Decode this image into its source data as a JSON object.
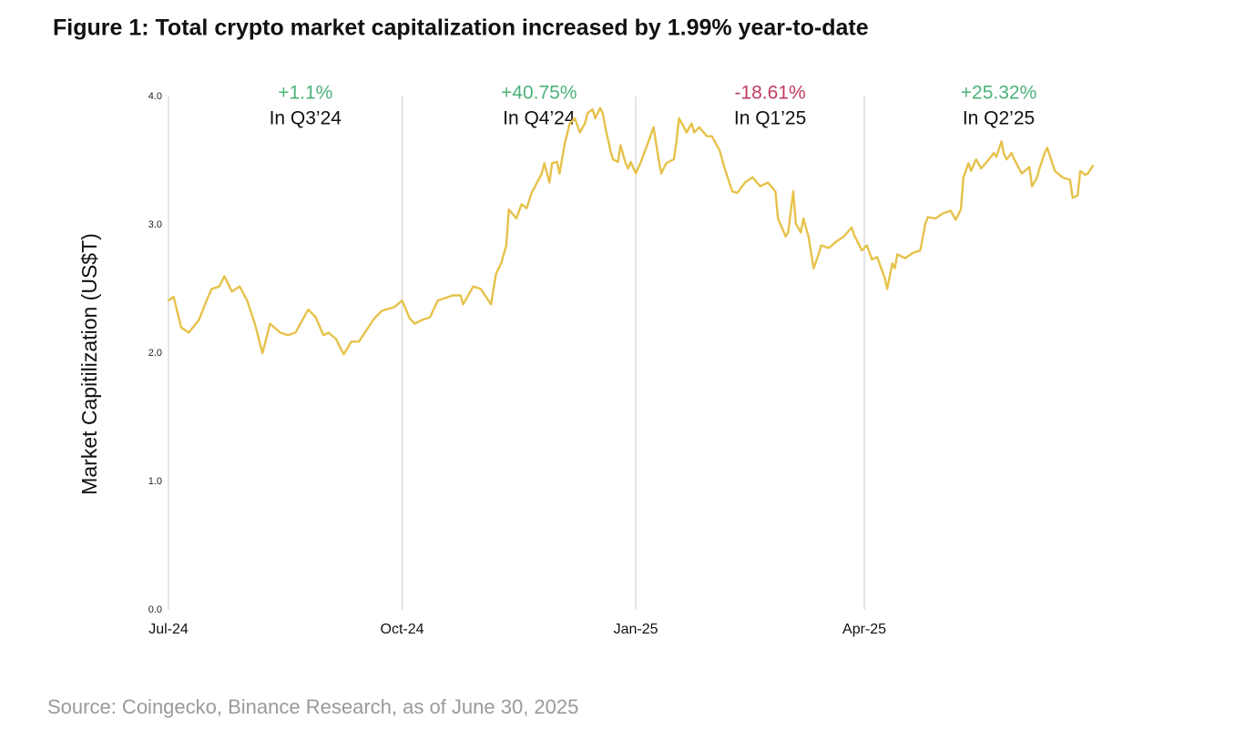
{
  "chart_data": {
    "type": "line",
    "title": "Figure 1: Total crypto market capitalization increased by 1.99% year-to-date",
    "y_label": "Market Capitilization (US$T)",
    "source": "Source: Coingecko, Binance Research, as of June 30, 2025",
    "color": "#e6c24a",
    "grid_color": "#cccccc",
    "xlim": [
      0,
      364
    ],
    "xticks": [
      {
        "value": 0,
        "label": "Jul-24"
      },
      {
        "value": 92,
        "label": "Oct-24"
      },
      {
        "value": 184,
        "label": "Jan-25"
      },
      {
        "value": 274,
        "label": "Apr-25"
      }
    ],
    "ylim": [
      0,
      4
    ],
    "yticks": [
      {
        "value": 0,
        "label": "0.0"
      },
      {
        "value": 1,
        "label": "1.0"
      },
      {
        "value": 2,
        "label": "2.0"
      },
      {
        "value": 3,
        "label": "3.0"
      },
      {
        "value": 4,
        "label": "4.0"
      }
    ],
    "annotations": [
      {
        "change": "+1.1%",
        "period": "In Q3’24",
        "color": "#4cb27a"
      },
      {
        "change": "+40.75%",
        "period": "In Q4’24",
        "color": "#4cb27a"
      },
      {
        "change": "-18.61%",
        "period": "In Q1’25",
        "color": "#c23b5e"
      },
      {
        "change": "+25.32%",
        "period": "In Q2’25",
        "color": "#4cb27a"
      }
    ],
    "x": [
      0,
      2,
      5,
      8,
      12,
      15,
      17,
      20,
      22,
      25,
      28,
      31,
      34,
      37,
      40,
      44,
      47,
      50,
      55,
      58,
      61,
      63,
      66,
      69,
      72,
      75,
      78,
      81,
      84,
      89,
      92,
      95,
      97,
      100,
      103,
      106,
      109,
      112,
      115,
      116,
      120,
      123,
      127,
      129,
      131,
      133,
      134,
      137,
      139,
      141,
      143,
      147,
      148,
      150,
      151,
      153,
      154,
      156,
      158,
      160,
      162,
      164,
      165,
      167,
      168,
      170,
      171,
      172,
      174,
      175,
      177,
      178,
      180,
      181,
      182,
      184,
      186,
      189,
      191,
      193,
      194,
      196,
      199,
      200,
      201,
      203,
      204,
      206,
      207,
      209,
      212,
      214,
      217,
      219,
      222,
      224,
      227,
      230,
      233,
      236,
      239,
      240,
      243,
      244,
      246,
      247,
      249,
      250,
      252,
      254,
      256,
      257,
      260,
      263,
      266,
      269,
      270,
      273,
      275,
      277,
      279,
      282,
      283,
      285,
      286,
      287,
      290,
      293,
      296,
      298,
      299,
      302,
      305,
      308,
      310,
      312,
      313,
      315,
      316,
      318,
      320,
      323,
      325,
      326,
      328,
      329,
      330,
      332,
      333,
      336,
      339,
      340,
      342,
      343,
      345,
      346,
      348,
      349,
      352,
      355,
      356,
      358,
      359,
      361,
      362,
      364
    ],
    "values": [
      2.41,
      2.44,
      2.2,
      2.16,
      2.26,
      2.41,
      2.5,
      2.52,
      2.6,
      2.48,
      2.52,
      2.41,
      2.23,
      2.0,
      2.23,
      2.16,
      2.14,
      2.16,
      2.34,
      2.28,
      2.14,
      2.16,
      2.11,
      1.99,
      2.09,
      2.09,
      2.18,
      2.27,
      2.33,
      2.36,
      2.41,
      2.27,
      2.23,
      2.26,
      2.28,
      2.41,
      2.43,
      2.45,
      2.45,
      2.38,
      2.52,
      2.5,
      2.38,
      2.62,
      2.7,
      2.84,
      3.12,
      3.05,
      3.16,
      3.13,
      3.25,
      3.4,
      3.48,
      3.33,
      3.48,
      3.49,
      3.4,
      3.63,
      3.79,
      3.83,
      3.72,
      3.79,
      3.87,
      3.9,
      3.83,
      3.91,
      3.87,
      3.76,
      3.58,
      3.51,
      3.49,
      3.62,
      3.48,
      3.44,
      3.49,
      3.4,
      3.49,
      3.65,
      3.76,
      3.51,
      3.4,
      3.48,
      3.51,
      3.65,
      3.83,
      3.76,
      3.72,
      3.79,
      3.72,
      3.76,
      3.69,
      3.69,
      3.58,
      3.44,
      3.26,
      3.25,
      3.33,
      3.37,
      3.3,
      3.33,
      3.26,
      3.05,
      2.91,
      2.94,
      3.26,
      3.01,
      2.94,
      3.05,
      2.91,
      2.66,
      2.77,
      2.84,
      2.82,
      2.87,
      2.91,
      2.98,
      2.92,
      2.8,
      2.84,
      2.73,
      2.75,
      2.59,
      2.5,
      2.7,
      2.66,
      2.77,
      2.74,
      2.78,
      2.8,
      3.01,
      3.06,
      3.05,
      3.09,
      3.11,
      3.04,
      3.12,
      3.37,
      3.48,
      3.42,
      3.51,
      3.44,
      3.51,
      3.56,
      3.53,
      3.65,
      3.55,
      3.51,
      3.56,
      3.51,
      3.4,
      3.45,
      3.3,
      3.37,
      3.44,
      3.56,
      3.6,
      3.48,
      3.42,
      3.37,
      3.35,
      3.21,
      3.23,
      3.42,
      3.39,
      3.4,
      3.46
    ]
  }
}
